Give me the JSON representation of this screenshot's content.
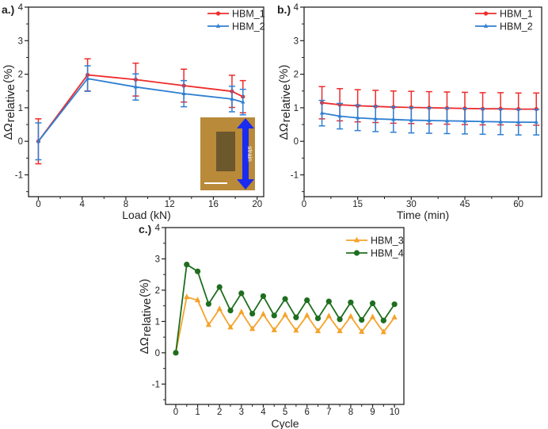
{
  "colors": {
    "HBM_1": "#ee2b2b",
    "HBM_2": "#2f7fd2",
    "HBM_3": "#f5a32a",
    "HBM_4": "#1f6e1f",
    "axis": "#222222"
  },
  "chart_data": [
    {
      "type": "line",
      "panel_label": "a.)",
      "xlabel": "Load (kN)",
      "ylabel": "ΔΩ",
      "ylabel_sub": "relative",
      "ylabel_unit": " (%)",
      "xlim": [
        -0.9,
        20.6
      ],
      "ylim": [
        -1.65,
        4
      ],
      "xticks": [
        0,
        4,
        8,
        12,
        16,
        20
      ],
      "yticks": [
        -1,
        0,
        1,
        2,
        3,
        4
      ],
      "legend": "top-right",
      "grid": false,
      "series": [
        {
          "name": "HBM_1",
          "marker": "circle",
          "x": [
            0,
            4.5,
            8.9,
            13.3,
            17.7,
            18.7
          ],
          "y": [
            0,
            1.98,
            1.84,
            1.66,
            1.49,
            1.33
          ],
          "error": [
            0.67,
            0.48,
            0.49,
            0.49,
            0.48,
            0.48
          ]
        },
        {
          "name": "HBM_2",
          "marker": "triangle",
          "x": [
            0,
            4.5,
            8.9,
            13.3,
            17.7,
            18.7
          ],
          "y": [
            0,
            1.87,
            1.62,
            1.42,
            1.26,
            1.17
          ],
          "error": [
            0.55,
            0.38,
            0.39,
            0.39,
            0.38,
            0.38
          ]
        }
      ],
      "inset": {
        "description": "photo",
        "label": "strain"
      }
    },
    {
      "type": "line",
      "panel_label": "b.)",
      "xlabel": "Time (min)",
      "ylabel": "ΔΩ",
      "ylabel_sub": "relative",
      "ylabel_unit": " (%)",
      "xlim": [
        0,
        66.5
      ],
      "ylim": [
        -1.65,
        4
      ],
      "xticks": [
        0,
        15,
        30,
        45,
        60
      ],
      "yticks": [
        -1,
        0,
        1,
        2,
        3,
        4
      ],
      "legend": "top-right",
      "grid": false,
      "series": [
        {
          "name": "HBM_1",
          "marker": "circle",
          "x": [
            5,
            10,
            15,
            20,
            25,
            30,
            35,
            40,
            45,
            50,
            55,
            60,
            65
          ],
          "y": [
            1.15,
            1.09,
            1.06,
            1.04,
            1.02,
            1.01,
            1.0,
            0.99,
            0.98,
            0.97,
            0.97,
            0.96,
            0.96
          ],
          "error": [
            0.48,
            0.48,
            0.48,
            0.48,
            0.48,
            0.48,
            0.48,
            0.48,
            0.48,
            0.48,
            0.48,
            0.48,
            0.48
          ]
        },
        {
          "name": "HBM_2",
          "marker": "triangle",
          "x": [
            5,
            10,
            15,
            20,
            25,
            30,
            35,
            40,
            45,
            50,
            55,
            60,
            65
          ],
          "y": [
            0.84,
            0.75,
            0.7,
            0.67,
            0.65,
            0.63,
            0.62,
            0.61,
            0.6,
            0.59,
            0.58,
            0.57,
            0.57
          ],
          "error": [
            0.38,
            0.38,
            0.38,
            0.38,
            0.38,
            0.38,
            0.38,
            0.38,
            0.38,
            0.38,
            0.38,
            0.38,
            0.38
          ]
        }
      ]
    },
    {
      "type": "line",
      "panel_label": "c.)",
      "xlabel": "Cycle",
      "ylabel": "ΔΩ",
      "ylabel_sub": "relative",
      "ylabel_unit": " (%)",
      "xlim": [
        -0.47,
        10.43
      ],
      "ylim": [
        -1.65,
        4
      ],
      "xticks": [
        0,
        1,
        2,
        3,
        4,
        5,
        6,
        7,
        8,
        9,
        10
      ],
      "yticks": [
        -1,
        0,
        1,
        2,
        3,
        4
      ],
      "legend": "top-right",
      "grid": false,
      "series": [
        {
          "name": "HBM_3",
          "marker": "triangle",
          "x": [
            0,
            0.5,
            1,
            1.5,
            2,
            2.5,
            3,
            3.5,
            4,
            4.5,
            5,
            5.5,
            6,
            6.5,
            7,
            7.5,
            8,
            8.5,
            9,
            9.5,
            10
          ],
          "y": [
            0,
            1.78,
            1.68,
            0.89,
            1.4,
            0.81,
            1.3,
            0.76,
            1.23,
            0.72,
            1.21,
            0.71,
            1.19,
            0.69,
            1.17,
            0.69,
            1.16,
            0.67,
            1.14,
            0.66,
            1.13
          ]
        },
        {
          "name": "HBM_4",
          "marker": "circle",
          "x": [
            0,
            0.5,
            1,
            1.5,
            2,
            2.5,
            3,
            3.5,
            4,
            4.5,
            5,
            5.5,
            6,
            6.5,
            7,
            7.5,
            8,
            8.5,
            9,
            9.5,
            10
          ],
          "y": [
            0,
            2.82,
            2.6,
            1.56,
            2.1,
            1.35,
            1.9,
            1.25,
            1.81,
            1.19,
            1.72,
            1.13,
            1.68,
            1.1,
            1.64,
            1.07,
            1.61,
            1.05,
            1.58,
            1.03,
            1.55
          ]
        }
      ]
    }
  ]
}
